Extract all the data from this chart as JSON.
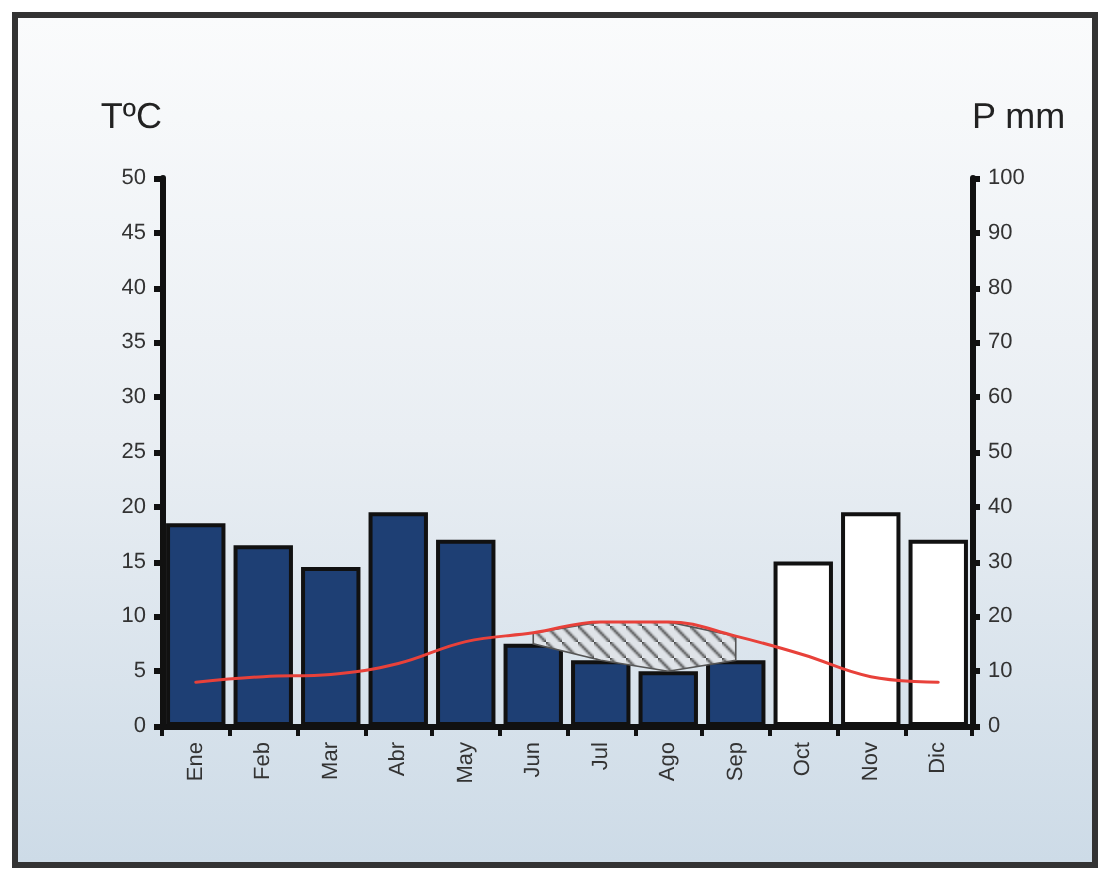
{
  "chart_data": {
    "type": "bar",
    "ylabel": "TºC",
    "y2label": "P mm",
    "categories": [
      "Ene",
      "Feb",
      "Mar",
      "Abr",
      "May",
      "Jun",
      "Jul",
      "Ago",
      "Sep",
      "Oct",
      "Nov",
      "Dic"
    ],
    "series": [
      {
        "axis": "y2",
        "values": [
          37,
          33,
          29,
          39,
          34,
          15,
          12,
          10,
          12,
          30,
          39,
          34
        ],
        "colors": [
          "#1e3f74",
          "#1e3f74",
          "#1e3f74",
          "#1e3f74",
          "#1e3f74",
          "#1e3f74",
          "#1e3f74",
          "#1e3f74",
          "#1e3f74",
          "#ffffff",
          "#ffffff",
          "#ffffff"
        ]
      },
      {
        "type": "line",
        "axis": "y",
        "color": "#e8413a",
        "values": [
          4,
          4.5,
          4.7,
          5.7,
          7.7,
          8.5,
          9.5,
          9.5,
          8.2,
          6.5,
          4.5,
          4
        ],
        "lower": [
          null,
          null,
          null,
          null,
          null,
          7.5,
          6,
          5,
          6,
          null,
          null,
          null
        ],
        "upper": [
          null,
          null,
          null,
          null,
          null,
          8.5,
          9.5,
          9.5,
          8.2,
          null,
          null,
          null
        ]
      }
    ],
    "ylim": [
      0,
      50
    ],
    "yticks": [
      0,
      5,
      10,
      15,
      20,
      25,
      30,
      35,
      40,
      45,
      50
    ],
    "y2lim": [
      0,
      100
    ],
    "y2ticks": [
      0,
      10,
      20,
      30,
      40,
      50,
      60,
      70,
      80,
      90,
      100
    ],
    "grid": false,
    "marker": "none",
    "line_style": "solid"
  }
}
